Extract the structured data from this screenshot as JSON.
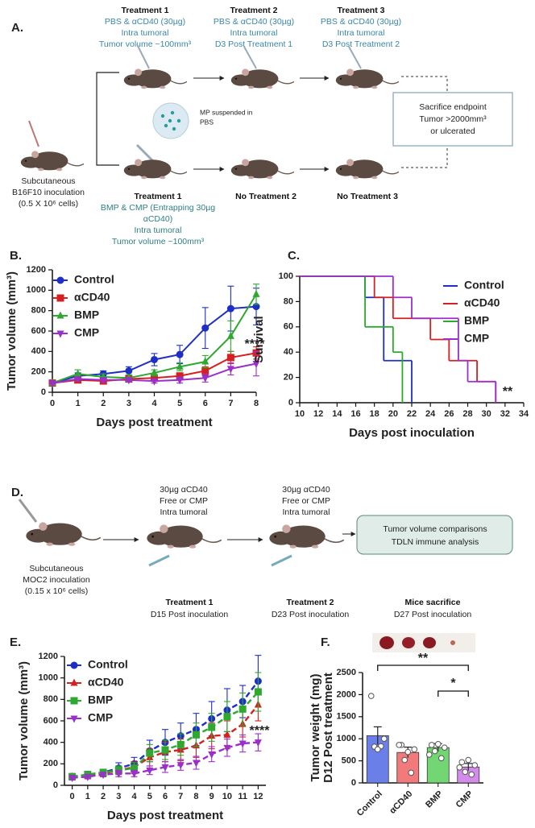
{
  "panel_a": {
    "label": "A.",
    "treatments": [
      {
        "title": "Treatment 1",
        "lines": [
          "PBS & αCD40 (30µg)",
          "Intra tumoral",
          "Tumor volume ~100mm³"
        ]
      },
      {
        "title": "Treatment 2",
        "lines": [
          "PBS & αCD40 (30µg)",
          "Intra tumoral",
          "D3 Post Treatment 1"
        ]
      },
      {
        "title": "Treatment 3",
        "lines": [
          "PBS & αCD40 (30µg)",
          "Intra tumoral",
          "D3 Post Treatment 2"
        ]
      }
    ],
    "inoculation": [
      "Subcutaneous",
      "B16F10 inoculation",
      "(0.5 X 10⁶ cells)"
    ],
    "mp_note": [
      "MP suspended in",
      "PBS"
    ],
    "endpoint": [
      "Sacrifice endpoint",
      "Tumor >2000mm³",
      "or ulcerated"
    ],
    "lower": {
      "title": "Treatment 1",
      "lines": [
        "BMP & CMP (Entrapping 30µg",
        "αCD40)",
        "Intra tumoral",
        "Tumor volume ~100mm³"
      ]
    },
    "no_treatment": [
      "No Treatment 2",
      "No Treatment 3"
    ]
  },
  "panel_d": {
    "label": "D.",
    "inoculation": [
      "Subcutaneous",
      "MOC2 inoculation",
      "(0.15 x 10⁶ cells)"
    ],
    "doses": [
      [
        "30µg αCD40",
        "Free or CMP",
        "Intra tumoral"
      ],
      [
        "30µg αCD40",
        "Free or CMP",
        "Intra tumoral"
      ]
    ],
    "steps": [
      {
        "title": "Treatment 1",
        "text": "D15 Post inoculation"
      },
      {
        "title": "Treatment 2",
        "text": "D23 Post inoculation"
      },
      {
        "title": "Mice sacrifice",
        "text": "D27 Post inoculation"
      }
    ],
    "box": [
      "Tumor volume comparisons",
      "TDLN immune analysis"
    ]
  },
  "chart_data": [
    {
      "type": "line",
      "label": "B.",
      "xlabel": "Days post treatment",
      "ylabel": "Tumor volume (mm³)",
      "annotation": "****",
      "legend": "upper left",
      "x": [
        0,
        1,
        2,
        3,
        4,
        5,
        6,
        7,
        8
      ],
      "xlim": [
        0,
        8
      ],
      "xticks": [
        0,
        1,
        2,
        3,
        4,
        5,
        6,
        7,
        8
      ],
      "ylim": [
        0,
        1200
      ],
      "yticks": [
        0,
        200,
        400,
        600,
        800,
        1000,
        1200
      ],
      "series": [
        {
          "name": "Control",
          "color": "#1d2fc4",
          "marker": "circle",
          "values": [
            90,
            160,
            180,
            210,
            320,
            370,
            630,
            820,
            840
          ],
          "errors": [
            10,
            30,
            30,
            40,
            60,
            90,
            200,
            220,
            180
          ]
        },
        {
          "name": "αCD40",
          "color": "#d42020",
          "marker": "square",
          "values": [
            90,
            120,
            110,
            130,
            140,
            160,
            210,
            340,
            385
          ],
          "errors": [
            10,
            20,
            20,
            20,
            30,
            30,
            40,
            60,
            60
          ]
        },
        {
          "name": "BMP",
          "color": "#2ea82e",
          "marker": "tri-up",
          "values": [
            90,
            180,
            150,
            140,
            190,
            250,
            300,
            550,
            960
          ],
          "errors": [
            10,
            40,
            30,
            30,
            30,
            40,
            60,
            150,
            100
          ]
        },
        {
          "name": "CMP",
          "color": "#9b2fc9",
          "marker": "tri-down",
          "values": [
            90,
            130,
            120,
            120,
            110,
            120,
            140,
            230,
            280
          ],
          "errors": [
            10,
            20,
            20,
            20,
            20,
            30,
            40,
            60,
            120
          ]
        }
      ]
    },
    {
      "type": "step",
      "label": "C.",
      "xlabel": "Days post inoculation",
      "ylabel": "Survival",
      "annotation": "**",
      "legend": "upper right",
      "xlim": [
        10,
        34
      ],
      "xticks": [
        10,
        12,
        14,
        16,
        18,
        20,
        22,
        24,
        26,
        28,
        30,
        32,
        34
      ],
      "ylim": [
        0,
        100
      ],
      "yticks": [
        0,
        20,
        40,
        60,
        80,
        100
      ],
      "series": [
        {
          "name": "Control",
          "color": "#1d2fc4",
          "x": [
            10,
            17,
            19,
            22
          ],
          "values": [
            100,
            83.3,
            33.3,
            0
          ]
        },
        {
          "name": "αCD40",
          "color": "#d42020",
          "x": [
            10,
            18,
            20,
            24,
            26,
            29,
            31
          ],
          "values": [
            100,
            83.3,
            66.7,
            50,
            33.3,
            16.7,
            0
          ]
        },
        {
          "name": "BMP",
          "color": "#2ea82e",
          "x": [
            10,
            17,
            20,
            21
          ],
          "values": [
            100,
            60,
            40,
            0
          ]
        },
        {
          "name": "CMP",
          "color": "#9b2fc9",
          "x": [
            10,
            20,
            22,
            27,
            28,
            31
          ],
          "values": [
            100,
            83.3,
            66.7,
            33.3,
            16.7,
            0
          ]
        }
      ]
    },
    {
      "type": "line",
      "label": "E.",
      "xlabel": "Days post treatment",
      "ylabel": "Tumor volume (mm³)",
      "annotation": "****",
      "legend": "upper left",
      "dashed": true,
      "x": [
        0,
        1,
        2,
        3,
        4,
        5,
        6,
        7,
        8,
        9,
        10,
        11,
        12
      ],
      "xlim": [
        -0.5,
        12.5
      ],
      "xticks": [
        0,
        1,
        2,
        3,
        4,
        5,
        6,
        7,
        8,
        9,
        10,
        11,
        12
      ],
      "ylim": [
        0,
        1200
      ],
      "yticks": [
        0,
        200,
        400,
        600,
        800,
        1000,
        1200
      ],
      "series": [
        {
          "name": "Control",
          "color": "#1d2fc4",
          "marker": "circle",
          "values": [
            80,
            100,
            120,
            160,
            200,
            320,
            400,
            460,
            520,
            620,
            700,
            780,
            970
          ],
          "errors": [
            30,
            30,
            30,
            50,
            60,
            100,
            120,
            120,
            150,
            160,
            200,
            150,
            240
          ]
        },
        {
          "name": "αCD40",
          "color": "#d42020",
          "marker": "tri-up",
          "values": [
            80,
            90,
            110,
            140,
            170,
            260,
            310,
            330,
            370,
            460,
            470,
            570,
            750
          ],
          "errors": [
            20,
            20,
            30,
            40,
            50,
            80,
            90,
            100,
            110,
            120,
            130,
            120,
            150
          ]
        },
        {
          "name": "BMP",
          "color": "#2ea82e",
          "marker": "square",
          "values": [
            80,
            100,
            120,
            140,
            160,
            300,
            330,
            380,
            470,
            540,
            640,
            710,
            870
          ],
          "errors": [
            20,
            20,
            30,
            40,
            50,
            80,
            90,
            100,
            110,
            130,
            140,
            150,
            180
          ]
        },
        {
          "name": "CMP",
          "color": "#9b2fc9",
          "marker": "tri-down",
          "values": [
            70,
            80,
            100,
            110,
            110,
            140,
            170,
            190,
            210,
            290,
            350,
            390,
            400
          ],
          "errors": [
            20,
            20,
            20,
            30,
            30,
            40,
            50,
            50,
            60,
            70,
            80,
            80,
            80
          ]
        }
      ]
    },
    {
      "type": "bar",
      "label": "F.",
      "ylabel": [
        "Tumor weight (mg)",
        "D12 Post treatment"
      ],
      "annotations": [
        "**",
        "*"
      ],
      "categories": [
        "Control",
        "αCD40",
        "BMP",
        "CMP"
      ],
      "values": [
        1070,
        690,
        800,
        360
      ],
      "errors": [
        200,
        120,
        90,
        80
      ],
      "colors": [
        "#6b7fe8",
        "#f27a7a",
        "#72d672",
        "#d48bec"
      ],
      "points": [
        [
          1970,
          1000,
          820,
          830,
          760
        ],
        [
          860,
          760,
          520,
          230,
          700,
          860
        ],
        [
          860,
          800,
          720,
          560,
          880,
          640
        ],
        [
          470,
          400,
          250,
          190,
          520,
          350
        ]
      ],
      "ylim": [
        0,
        2500
      ],
      "yticks": [
        0,
        500,
        1000,
        1500,
        2000,
        2500
      ]
    }
  ]
}
